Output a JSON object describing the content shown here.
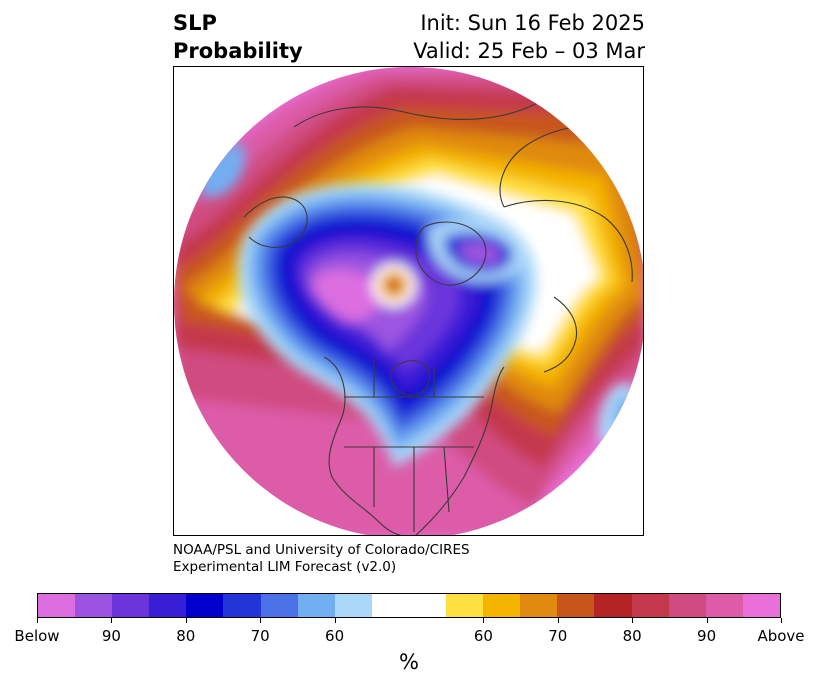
{
  "title": {
    "left_line1": "SLP",
    "left_line2": "Probability",
    "right_line1": "Init: Sun 16 Feb 2025",
    "right_line2": "Valid: 25 Feb – 03 Mar"
  },
  "credit": {
    "line1": "NOAA/PSL and University of Colorado/CIRES",
    "line2": "Experimental LIM Forecast (v2.0)"
  },
  "colorbar": {
    "segments": [
      "#dc6ee0",
      "#9c54e0",
      "#6a36dc",
      "#3a1ed6",
      "#0000cc",
      "#2236d8",
      "#4a72e6",
      "#72aef2",
      "#aad8f8",
      "#ffffff",
      "#ffe040",
      "#f4b400",
      "#e08a10",
      "#c8561a",
      "#b42424",
      "#c4384c",
      "#d04c80",
      "#dc5ca8",
      "#e870d8"
    ],
    "labels": [
      "Below",
      "90",
      "80",
      "70",
      "60",
      "60",
      "70",
      "80",
      "90",
      "Above"
    ],
    "unit": "%"
  },
  "map": {
    "colors": {
      "above_max": "#e870d8",
      "above_90": "#dc5ca8",
      "above_85": "#d04c80",
      "above_80": "#c4384c",
      "above_75": "#b42424",
      "above_70": "#c8561a",
      "above_65": "#e08a10",
      "above_60": "#f4b400",
      "above_55": "#ffe040",
      "neutral": "#ffffff",
      "below_55": "#aad8f8",
      "below_60": "#72aef2",
      "below_65": "#4a72e6",
      "below_70": "#2236d8",
      "below_75": "#0000cc",
      "below_80": "#3a1ed6",
      "below_85": "#6a36dc",
      "below_90": "#9c54e0",
      "below_max": "#dc6ee0",
      "coastline": "#3a3a3a"
    }
  }
}
